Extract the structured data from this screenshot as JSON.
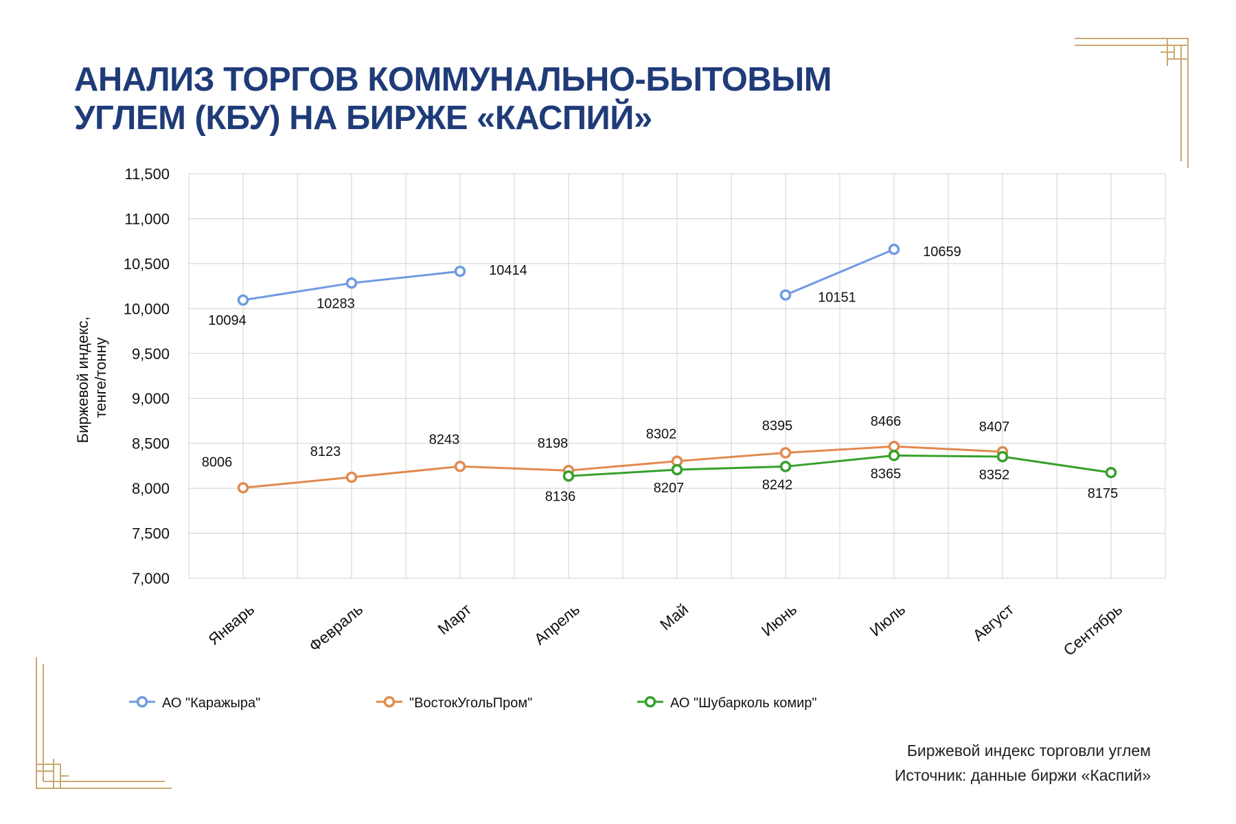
{
  "title": {
    "line1": "АНАЛИЗ ТОРГОВ КОММУНАЛЬНО-БЫТОВЫМ",
    "line2": "УГЛЕМ (КБУ) НА БИРЖЕ «КАСПИЙ»"
  },
  "footer": {
    "line1": "Биржевой индекс торговли углем",
    "line2": "Источник: данные биржи «Каспий»"
  },
  "colors": {
    "title": "#1f3b78",
    "ornament": "#c9a96e",
    "grid": "#d0d0d0"
  },
  "chart_data": {
    "type": "line",
    "title": "",
    "xlabel": "",
    "ylabel": "Биржевой индекс, тенге/тонну",
    "ylabel_lines": [
      "Биржевой индекс,",
      "тенге/тонну"
    ],
    "ylim": [
      7000,
      11500
    ],
    "yticks": [
      7000,
      7500,
      8000,
      8500,
      9000,
      9500,
      10000,
      10500,
      11000,
      11500
    ],
    "ytick_labels": [
      "7,000",
      "7,500",
      "8,000",
      "8,500",
      "9,000",
      "9,500",
      "10,000",
      "10,500",
      "11,000",
      "11,500"
    ],
    "grid": true,
    "legend": "bottom",
    "categories": [
      "Январь",
      "Февраль",
      "Март",
      "Апрель",
      "Май",
      "Июнь",
      "Июль",
      "Август",
      "Сентябрь"
    ],
    "series": [
      {
        "name": "АО \"Каражыра\"",
        "color": "#6f9be2",
        "values": [
          10094,
          10283,
          10414,
          null,
          null,
          10151,
          10659,
          null,
          null
        ],
        "segments": [
          [
            0,
            2
          ],
          [
            5,
            6
          ]
        ]
      },
      {
        "name": "\"ВостокУгольПром\"",
        "color": "#e08a4e",
        "values": [
          8006,
          8123,
          8243,
          8198,
          8302,
          8395,
          8466,
          8407,
          null
        ],
        "segments": [
          [
            0,
            7
          ]
        ]
      },
      {
        "name": "АО \"Шубарколь комир\"",
        "color": "#35a02a",
        "values": [
          null,
          null,
          null,
          8136,
          8207,
          8242,
          8365,
          8352,
          8175
        ],
        "segments": [
          [
            3,
            8
          ]
        ]
      }
    ]
  }
}
